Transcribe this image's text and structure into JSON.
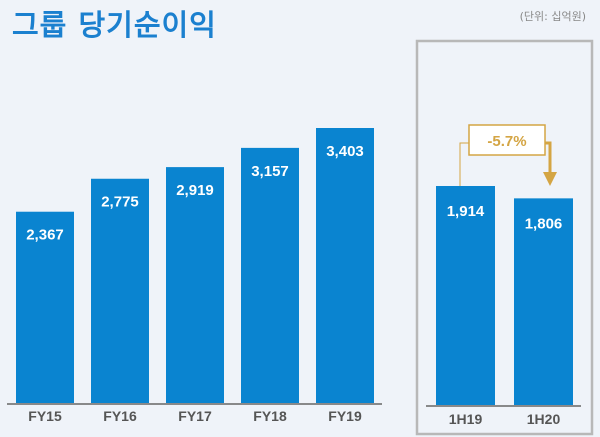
{
  "title": "그룹 당기순이익",
  "unit": "(단위: 십억원)",
  "colors": {
    "bar": "#0a84d0",
    "accent": "#d4a544",
    "title": "#1b80cf"
  },
  "chart_data": [
    {
      "type": "bar",
      "categories": [
        "FY15",
        "FY16",
        "FY17",
        "FY18",
        "FY19"
      ],
      "values": [
        2367,
        2775,
        2919,
        3157,
        3403
      ],
      "data_labels": [
        "2,367",
        "2,775",
        "2,919",
        "3,157",
        "3,403"
      ],
      "grid": false
    },
    {
      "type": "bar",
      "categories": [
        "1H19",
        "1H20"
      ],
      "values": [
        1914,
        1806
      ],
      "data_labels": [
        "1,914",
        "1,806"
      ],
      "grid": false,
      "annotation": "-5.7%"
    }
  ]
}
